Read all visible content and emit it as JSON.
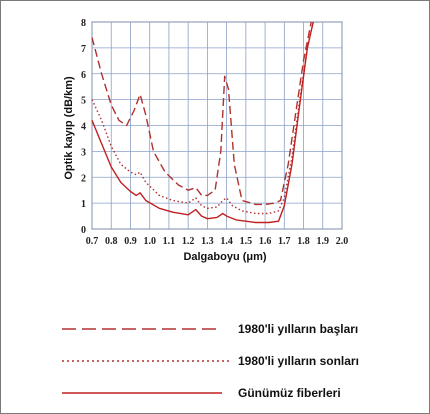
{
  "chart_data": {
    "type": "line",
    "xlabel": "Dalgaboyu (μm)",
    "ylabel": "Optik kayıp (dB/km)",
    "xlim": [
      0.7,
      2.0
    ],
    "ylim": [
      0,
      8
    ],
    "x_ticks": [
      "0.7",
      "0.8",
      "0.9",
      "1.0",
      "1.1",
      "1.2",
      "1.3",
      "1.4",
      "1.5",
      "1.6",
      "1.7",
      "1.8",
      "1.9",
      "2.0"
    ],
    "y_ticks": [
      "0",
      "1",
      "2",
      "3",
      "4",
      "5",
      "6",
      "7",
      "8"
    ],
    "grid": true,
    "legend_position": "below",
    "series": [
      {
        "name": "1980'li yılların başları",
        "style": "dashed",
        "color": "#b03030",
        "points": [
          [
            0.7,
            7.4
          ],
          [
            0.75,
            6.0
          ],
          [
            0.8,
            4.8
          ],
          [
            0.84,
            4.2
          ],
          [
            0.88,
            4.0
          ],
          [
            0.92,
            4.6
          ],
          [
            0.95,
            5.2
          ],
          [
            0.98,
            4.4
          ],
          [
            1.02,
            3.0
          ],
          [
            1.08,
            2.2
          ],
          [
            1.15,
            1.7
          ],
          [
            1.2,
            1.5
          ],
          [
            1.24,
            1.6
          ],
          [
            1.27,
            1.3
          ],
          [
            1.3,
            1.3
          ],
          [
            1.34,
            1.5
          ],
          [
            1.37,
            3.0
          ],
          [
            1.39,
            5.9
          ],
          [
            1.41,
            5.4
          ],
          [
            1.44,
            2.5
          ],
          [
            1.48,
            1.1
          ],
          [
            1.55,
            0.95
          ],
          [
            1.6,
            0.95
          ],
          [
            1.65,
            1.0
          ],
          [
            1.68,
            1.1
          ],
          [
            1.72,
            2.5
          ],
          [
            1.76,
            4.5
          ],
          [
            1.8,
            6.5
          ],
          [
            1.84,
            8.0
          ]
        ]
      },
      {
        "name": "1980'li yılların sonları",
        "style": "dotted",
        "color": "#b03030",
        "points": [
          [
            0.7,
            5.0
          ],
          [
            0.75,
            4.2
          ],
          [
            0.8,
            3.2
          ],
          [
            0.85,
            2.5
          ],
          [
            0.9,
            2.2
          ],
          [
            0.93,
            2.1
          ],
          [
            0.95,
            2.2
          ],
          [
            0.98,
            1.8
          ],
          [
            1.05,
            1.3
          ],
          [
            1.12,
            1.1
          ],
          [
            1.2,
            1.0
          ],
          [
            1.24,
            1.2
          ],
          [
            1.27,
            0.9
          ],
          [
            1.3,
            0.8
          ],
          [
            1.35,
            0.85
          ],
          [
            1.38,
            1.1
          ],
          [
            1.4,
            1.2
          ],
          [
            1.43,
            0.9
          ],
          [
            1.48,
            0.7
          ],
          [
            1.55,
            0.6
          ],
          [
            1.62,
            0.6
          ],
          [
            1.67,
            0.7
          ],
          [
            1.7,
            1.2
          ],
          [
            1.74,
            2.8
          ],
          [
            1.78,
            5.0
          ],
          [
            1.82,
            7.0
          ],
          [
            1.85,
            8.0
          ]
        ]
      },
      {
        "name": "Günümüz fiberleri",
        "style": "solid",
        "color": "#c02020",
        "points": [
          [
            0.7,
            4.2
          ],
          [
            0.75,
            3.3
          ],
          [
            0.8,
            2.4
          ],
          [
            0.85,
            1.8
          ],
          [
            0.9,
            1.45
          ],
          [
            0.93,
            1.3
          ],
          [
            0.95,
            1.4
          ],
          [
            0.98,
            1.1
          ],
          [
            1.05,
            0.8
          ],
          [
            1.12,
            0.65
          ],
          [
            1.2,
            0.55
          ],
          [
            1.24,
            0.75
          ],
          [
            1.27,
            0.5
          ],
          [
            1.3,
            0.4
          ],
          [
            1.35,
            0.45
          ],
          [
            1.38,
            0.6
          ],
          [
            1.4,
            0.5
          ],
          [
            1.45,
            0.35
          ],
          [
            1.5,
            0.3
          ],
          [
            1.55,
            0.25
          ],
          [
            1.62,
            0.25
          ],
          [
            1.67,
            0.3
          ],
          [
            1.7,
            0.9
          ],
          [
            1.74,
            2.5
          ],
          [
            1.78,
            4.8
          ],
          [
            1.82,
            7.0
          ],
          [
            1.85,
            8.0
          ]
        ]
      }
    ]
  }
}
